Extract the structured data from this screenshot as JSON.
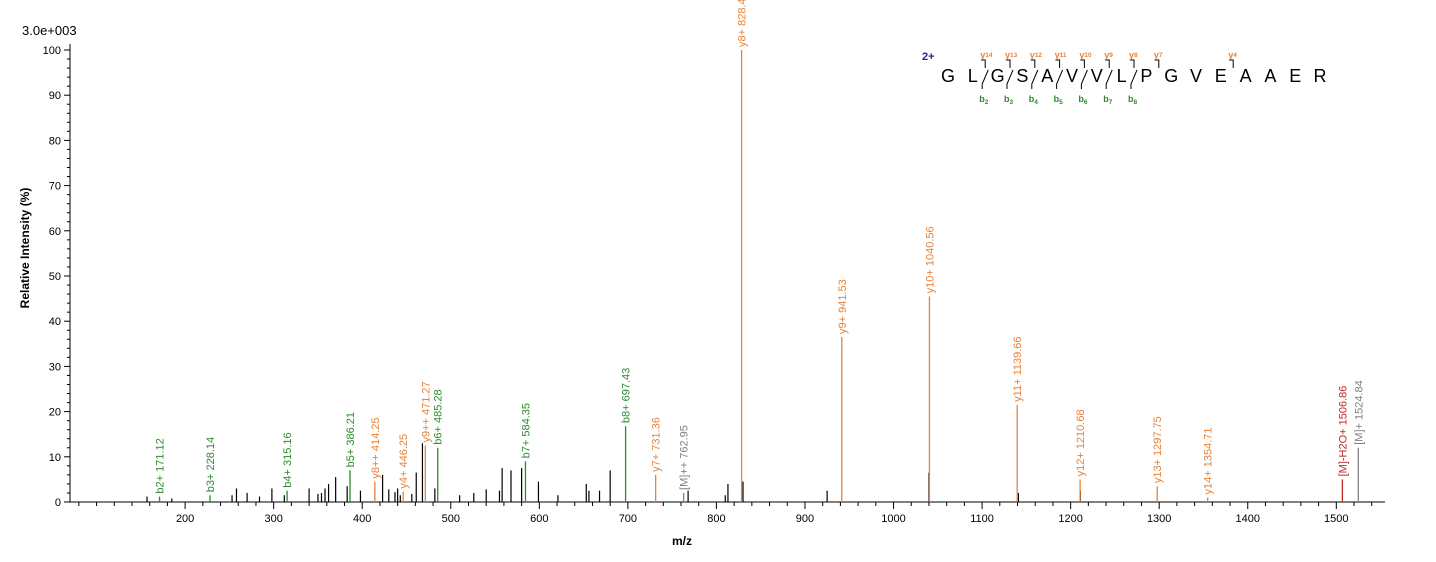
{
  "colors": {
    "b_ion": "#2e8b2e",
    "y_ion": "#e8823a",
    "precursor": "#808080",
    "water_loss": "#c0282a",
    "unassigned": "#000000",
    "charge": "#1f1fa0"
  },
  "chart_data": {
    "type": "bar",
    "scale_label": "3.0e+003",
    "xlabel": "m/z",
    "ylabel": "Relative   Intensity (%)",
    "xlim": [
      70,
      1555
    ],
    "ylim": [
      0,
      100
    ],
    "x_ticks": [
      200,
      300,
      400,
      500,
      600,
      700,
      800,
      900,
      1000,
      1100,
      1200,
      1300,
      1400,
      1500
    ],
    "y_ticks": [
      0,
      10,
      20,
      30,
      40,
      50,
      60,
      70,
      80,
      90,
      100
    ],
    "labeled_peaks": [
      {
        "mz": 171.12,
        "intensity": 1.2,
        "label": "b2+ 171.12",
        "ion": "b"
      },
      {
        "mz": 228.14,
        "intensity": 1.5,
        "label": "b3+ 228.14",
        "ion": "b"
      },
      {
        "mz": 315.16,
        "intensity": 2.5,
        "label": "b4+ 315.16",
        "ion": "b"
      },
      {
        "mz": 386.21,
        "intensity": 7.0,
        "label": "b5+ 386.21",
        "ion": "b"
      },
      {
        "mz": 414.25,
        "intensity": 4.5,
        "label": "y8++ 414.25",
        "ion": "y"
      },
      {
        "mz": 446.25,
        "intensity": 2.3,
        "label": "y4+ 446.25",
        "ion": "y"
      },
      {
        "mz": 471.27,
        "intensity": 12.5,
        "label": "y9++ 471.27",
        "ion": "y"
      },
      {
        "mz": 485.28,
        "intensity": 12.0,
        "label": "b6+ 485.28",
        "ion": "b"
      },
      {
        "mz": 584.35,
        "intensity": 9.0,
        "label": "b7+ 584.35",
        "ion": "b"
      },
      {
        "mz": 697.43,
        "intensity": 16.8,
        "label": "b8+ 697.43",
        "ion": "b"
      },
      {
        "mz": 731.36,
        "intensity": 6.0,
        "label": "y7+ 731.36",
        "ion": "y"
      },
      {
        "mz": 762.95,
        "intensity": 2.0,
        "label": "[M]++ 762.95",
        "ion": "precursor"
      },
      {
        "mz": 828.43,
        "intensity": 100,
        "label": "y8+ 828.43",
        "ion": "y"
      },
      {
        "mz": 941.53,
        "intensity": 36.5,
        "label": "y9+ 941.53",
        "ion": "y"
      },
      {
        "mz": 1040.56,
        "intensity": 45.5,
        "label": "y10+ 1040.56",
        "ion": "y"
      },
      {
        "mz": 1139.66,
        "intensity": 21.5,
        "label": "y11+ 1139.66",
        "ion": "y"
      },
      {
        "mz": 1210.68,
        "intensity": 5.0,
        "label": "y12+ 1210.68",
        "ion": "y"
      },
      {
        "mz": 1297.75,
        "intensity": 3.5,
        "label": "y13+ 1297.75",
        "ion": "y"
      },
      {
        "mz": 1354.71,
        "intensity": 1.0,
        "label": "y14+ 1354.71",
        "ion": "y"
      },
      {
        "mz": 1506.86,
        "intensity": 5.0,
        "label": "[M]-H2O+ 1506.86",
        "ion": "water_loss"
      },
      {
        "mz": 1524.84,
        "intensity": 12.0,
        "label": "[M]+ 1524.84",
        "ion": "precursor"
      }
    ],
    "unlabeled_peaks": [
      [
        157,
        1.2
      ],
      [
        185,
        0.8
      ],
      [
        253,
        1.5
      ],
      [
        258,
        3.0
      ],
      [
        270,
        2.0
      ],
      [
        284,
        1.2
      ],
      [
        298,
        3.0
      ],
      [
        312,
        1.5
      ],
      [
        340,
        3.0
      ],
      [
        350,
        1.8
      ],
      [
        354,
        2.0
      ],
      [
        358,
        3.0
      ],
      [
        362,
        4.0
      ],
      [
        370,
        5.5
      ],
      [
        383,
        3.5
      ],
      [
        398,
        2.5
      ],
      [
        423,
        6.0
      ],
      [
        430,
        2.8
      ],
      [
        437,
        2.2
      ],
      [
        440,
        3.0
      ],
      [
        443,
        1.5
      ],
      [
        456,
        1.8
      ],
      [
        461,
        6.5
      ],
      [
        468,
        13.0
      ],
      [
        482,
        3.0
      ],
      [
        510,
        1.5
      ],
      [
        526,
        2.0
      ],
      [
        540,
        2.8
      ],
      [
        555,
        2.5
      ],
      [
        558,
        7.5
      ],
      [
        568,
        7.0
      ],
      [
        580,
        7.5
      ],
      [
        599,
        4.5
      ],
      [
        621,
        1.5
      ],
      [
        653,
        4.0
      ],
      [
        656,
        2.5
      ],
      [
        668,
        2.5
      ],
      [
        680,
        7.0
      ],
      [
        768,
        2.5
      ],
      [
        810,
        1.5
      ],
      [
        813,
        4.0
      ],
      [
        830,
        4.5
      ],
      [
        925,
        2.5
      ],
      [
        1040,
        6.5
      ],
      [
        1141,
        2.0
      ],
      [
        1211,
        2.5
      ]
    ],
    "sequence": {
      "charge_label": "2+",
      "residues": [
        "G",
        "L",
        "G",
        "S",
        "A",
        "V",
        "V",
        "L",
        "P",
        "G",
        "V",
        "E",
        "A",
        "A",
        "E",
        "R"
      ],
      "b_ions": [
        {
          "after": 2,
          "ion": "b",
          "num": "2"
        },
        {
          "after": 3,
          "ion": "b",
          "num": "3"
        },
        {
          "after": 4,
          "ion": "b",
          "num": "4"
        },
        {
          "after": 5,
          "ion": "b",
          "num": "5"
        },
        {
          "after": 6,
          "ion": "b",
          "num": "6"
        },
        {
          "after": 7,
          "ion": "b",
          "num": "7"
        },
        {
          "after": 8,
          "ion": "b",
          "num": "8"
        }
      ],
      "y_ions": [
        {
          "after": 2,
          "ion": "y",
          "num": "14"
        },
        {
          "after": 3,
          "ion": "y",
          "num": "13"
        },
        {
          "after": 4,
          "ion": "y",
          "num": "12"
        },
        {
          "after": 5,
          "ion": "y",
          "num": "11"
        },
        {
          "after": 6,
          "ion": "y",
          "num": "10"
        },
        {
          "after": 7,
          "ion": "y",
          "num": "9"
        },
        {
          "after": 8,
          "ion": "y",
          "num": "8"
        },
        {
          "after": 9,
          "ion": "y",
          "num": "7"
        },
        {
          "after": 12,
          "ion": "y",
          "num": "4"
        }
      ]
    }
  }
}
